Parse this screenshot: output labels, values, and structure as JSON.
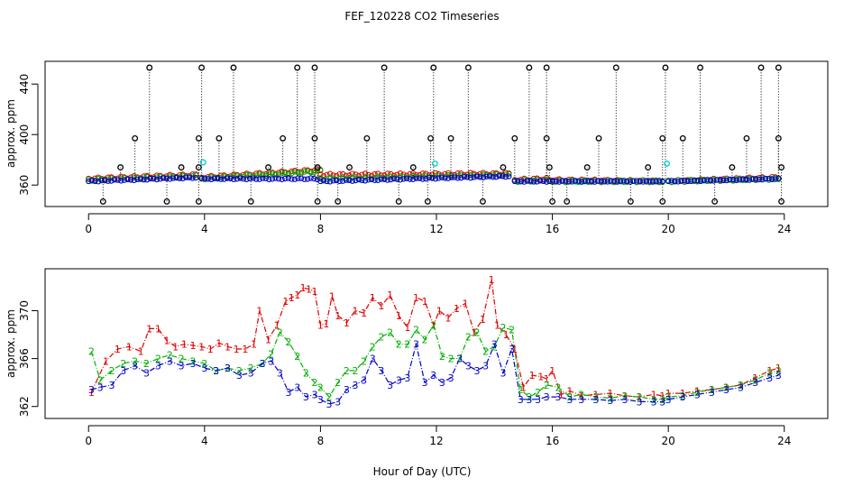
{
  "chart_data": [
    {
      "type": "scatter",
      "title": "FEF_120228  CO2 Timeseries",
      "xlabel": "",
      "ylabel": "approx. ppm",
      "xlim": [
        -1.5,
        25.5
      ],
      "ylim": [
        343,
        458
      ],
      "xticks": [
        0,
        4,
        8,
        12,
        16,
        20,
        24
      ],
      "yticks": [
        360,
        400,
        440
      ],
      "colors": {
        "red": "#e00000",
        "green": "#00b000",
        "blue": "#0000cc",
        "black": "#000000",
        "cyan": "#00cccc"
      },
      "baseline_segments": [
        {
          "x": [
            0.0,
            3.7
          ],
          "blue": [
            363,
            366
          ],
          "red": [
            365,
            368
          ],
          "green": [
            364,
            367
          ]
        },
        {
          "x": [
            3.9,
            8.0
          ],
          "blue": [
            365,
            365
          ],
          "red": [
            366,
            372
          ],
          "green": [
            365,
            371
          ]
        },
        {
          "x": [
            8.0,
            14.5
          ],
          "blue": [
            363,
            367
          ],
          "red": [
            368,
            369
          ],
          "green": [
            365,
            368
          ]
        },
        {
          "x": [
            14.7,
            15.8
          ],
          "blue": [
            363,
            363
          ],
          "red": [
            364,
            365
          ],
          "green": [
            363,
            364
          ]
        },
        {
          "x": [
            15.9,
            19.8
          ],
          "blue": [
            363,
            363
          ],
          "red": [
            364,
            363
          ],
          "green": [
            363,
            363
          ]
        },
        {
          "x": [
            20.0,
            23.8
          ],
          "blue": [
            363,
            365
          ],
          "red": [
            363,
            366
          ],
          "green": [
            363,
            365
          ]
        }
      ],
      "spikes_high": [
        2.1,
        3.9,
        5.0,
        7.2,
        7.8,
        10.2,
        11.9,
        13.1,
        15.2,
        15.8,
        18.2,
        19.9,
        21.1,
        23.2,
        23.8
      ],
      "spikes_high_value": 453,
      "spikes_mid": [
        1.6,
        3.8,
        4.5,
        6.7,
        7.8,
        9.6,
        11.8,
        12.5,
        14.7,
        15.8,
        17.6,
        19.8,
        20.5,
        22.7,
        23.8
      ],
      "spikes_mid_value": 397,
      "spikes_low_small": [
        1.1,
        3.2,
        3.8,
        6.2,
        7.9,
        9.0,
        11.2,
        14.3,
        15.9,
        17.2,
        19.3,
        22.2,
        23.9
      ],
      "spikes_low_small_value": 374,
      "spikes_bottom": [
        0.5,
        2.7,
        3.8,
        5.6,
        7.9,
        8.6,
        10.7,
        11.7,
        13.6,
        16.0,
        16.5,
        18.7,
        19.8,
        21.6,
        23.9
      ],
      "spikes_bottom_value": 347,
      "cyan_points": [
        {
          "x": 3.95,
          "y": 378
        },
        {
          "x": 11.95,
          "y": 377
        },
        {
          "x": 19.95,
          "y": 377
        }
      ]
    },
    {
      "type": "line",
      "title": "",
      "xlabel": "Hour of Day (UTC)",
      "ylabel": "approx. ppm",
      "xlim": [
        -1.5,
        25.5
      ],
      "ylim": [
        361.0,
        373.5
      ],
      "xticks": [
        0,
        4,
        8,
        12,
        16,
        20,
        24
      ],
      "yticks": [
        362,
        366,
        370
      ],
      "series": [
        {
          "name": "1",
          "color": "#e00000",
          "label": "1",
          "x": [
            0.1,
            0.6,
            1.0,
            1.4,
            1.8,
            2.1,
            2.4,
            2.7,
            3.0,
            3.3,
            3.6,
            3.9,
            4.2,
            4.5,
            4.8,
            5.1,
            5.4,
            5.7,
            5.9,
            6.2,
            6.5,
            6.8,
            7.0,
            7.2,
            7.4,
            7.6,
            7.8,
            8.0,
            8.2,
            8.4,
            8.6,
            8.9,
            9.2,
            9.5,
            9.8,
            10.1,
            10.4,
            10.7,
            11.0,
            11.3,
            11.6,
            11.9,
            12.1,
            12.4,
            12.7,
            13.0,
            13.3,
            13.6,
            13.9,
            14.1,
            14.4,
            14.7,
            15.0,
            15.3,
            15.6,
            15.8,
            16.0,
            16.3,
            16.6,
            17.0,
            17.5,
            18.0,
            18.5,
            19.0,
            19.5,
            19.8,
            20.0,
            20.5,
            21.0,
            21.5,
            22.0,
            22.5,
            23.0,
            23.5,
            23.8
          ],
          "values": [
            363.2,
            365.8,
            366.8,
            367.0,
            366.6,
            368.5,
            368.5,
            367.5,
            367.0,
            367.2,
            367.1,
            367.0,
            366.8,
            367.3,
            367.0,
            366.8,
            366.8,
            367.2,
            370.0,
            367.6,
            368.8,
            370.8,
            371.1,
            371.3,
            371.9,
            371.8,
            371.6,
            368.8,
            368.9,
            371.2,
            369.6,
            369.0,
            370.0,
            369.8,
            371.1,
            370.4,
            371.3,
            369.6,
            368.6,
            371.1,
            370.8,
            368.8,
            370.0,
            369.4,
            370.2,
            370.6,
            368.2,
            369.3,
            372.6,
            368.8,
            368.0,
            366.8,
            363.6,
            364.6,
            364.5,
            364.3,
            365.0,
            363.0,
            363.3,
            362.9,
            363.0,
            363.1,
            362.9,
            362.8,
            363.0,
            362.9,
            363.1,
            363.1,
            363.3,
            363.4,
            363.6,
            363.8,
            364.4,
            365.0,
            365.2
          ]
        },
        {
          "name": "2",
          "color": "#00b000",
          "label": "2",
          "x": [
            0.1,
            0.4,
            0.8,
            1.2,
            1.6,
            2.0,
            2.4,
            2.8,
            3.2,
            3.6,
            4.0,
            4.4,
            4.8,
            5.2,
            5.6,
            6.0,
            6.3,
            6.6,
            6.9,
            7.2,
            7.5,
            7.8,
            8.0,
            8.3,
            8.6,
            8.9,
            9.2,
            9.5,
            9.8,
            10.1,
            10.4,
            10.7,
            11.0,
            11.3,
            11.6,
            11.9,
            12.2,
            12.5,
            12.8,
            13.1,
            13.4,
            13.7,
            14.0,
            14.3,
            14.6,
            14.9,
            15.2,
            15.5,
            15.8,
            16.2,
            16.6,
            17.0,
            17.5,
            18.0,
            18.5,
            19.0,
            19.5,
            19.8,
            20.0,
            20.5,
            21.0,
            21.5,
            22.0,
            22.5,
            23.0,
            23.5,
            23.8
          ],
          "values": [
            366.6,
            364.2,
            365.0,
            365.6,
            365.8,
            365.6,
            366.0,
            366.3,
            366.0,
            365.8,
            365.6,
            365.0,
            365.2,
            365.0,
            365.2,
            365.6,
            366.4,
            368.2,
            367.4,
            366.2,
            364.8,
            364.0,
            363.6,
            362.8,
            364.0,
            365.0,
            365.0,
            365.8,
            367.0,
            367.8,
            368.2,
            367.2,
            367.2,
            368.4,
            367.6,
            368.8,
            366.2,
            366.0,
            366.0,
            367.8,
            368.2,
            366.6,
            367.0,
            368.6,
            368.4,
            363.4,
            362.8,
            363.2,
            363.8,
            363.6,
            362.8,
            363.0,
            362.8,
            362.7,
            362.9,
            362.8,
            362.6,
            362.6,
            362.8,
            362.9,
            363.2,
            363.4,
            363.6,
            363.8,
            364.2,
            364.8,
            365.0
          ]
        },
        {
          "name": "3",
          "color": "#0000cc",
          "label": "3",
          "x": [
            0.1,
            0.4,
            0.8,
            1.2,
            1.6,
            2.0,
            2.4,
            2.8,
            3.2,
            3.6,
            4.0,
            4.4,
            4.8,
            5.2,
            5.6,
            6.0,
            6.3,
            6.6,
            6.9,
            7.2,
            7.5,
            7.8,
            8.0,
            8.3,
            8.6,
            8.9,
            9.2,
            9.5,
            9.8,
            10.1,
            10.4,
            10.7,
            11.0,
            11.3,
            11.6,
            11.9,
            12.2,
            12.5,
            12.8,
            13.1,
            13.4,
            13.7,
            14.0,
            14.3,
            14.6,
            14.9,
            15.2,
            15.5,
            15.8,
            16.2,
            16.6,
            17.0,
            17.5,
            18.0,
            18.5,
            19.0,
            19.5,
            19.8,
            20.0,
            20.5,
            21.0,
            21.5,
            22.0,
            22.5,
            23.0,
            23.5,
            23.8
          ],
          "values": [
            363.4,
            363.6,
            363.8,
            365.0,
            365.4,
            364.8,
            365.4,
            365.8,
            365.4,
            365.6,
            365.2,
            365.0,
            365.2,
            364.6,
            364.8,
            365.6,
            365.8,
            364.8,
            363.2,
            363.6,
            362.8,
            363.0,
            362.6,
            362.2,
            362.4,
            363.4,
            363.8,
            364.2,
            366.0,
            365.0,
            363.8,
            364.2,
            364.4,
            367.2,
            364.0,
            364.6,
            364.0,
            364.4,
            366.0,
            365.4,
            365.0,
            365.4,
            367.2,
            364.8,
            366.8,
            362.6,
            362.6,
            362.6,
            362.8,
            362.8,
            362.6,
            362.6,
            362.6,
            362.5,
            362.6,
            362.4,
            362.4,
            362.4,
            362.6,
            362.8,
            363.0,
            363.2,
            363.4,
            363.6,
            364.0,
            364.4,
            364.6
          ]
        }
      ]
    }
  ]
}
